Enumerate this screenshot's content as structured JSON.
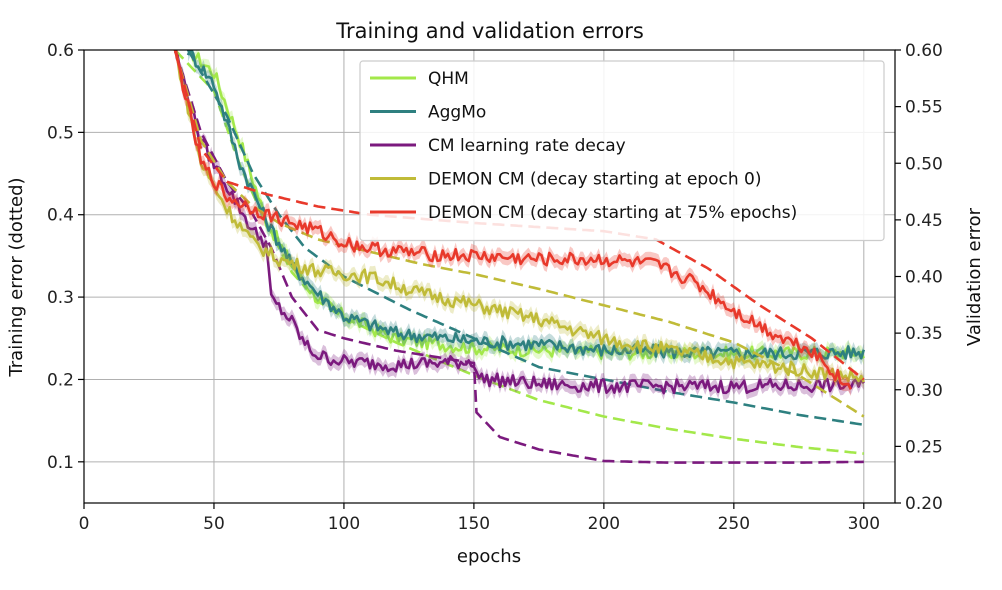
{
  "chart_data": {
    "type": "line",
    "title": "Training and validation errors",
    "xlabel": "epochs",
    "ylabel_left": "Training error (dotted)",
    "ylabel_right": "Validation error",
    "xlim": [
      0,
      312
    ],
    "ylim_left": [
      0.05,
      0.6
    ],
    "ylim_right": [
      0.2,
      0.6
    ],
    "xticks": [
      "0",
      "50",
      "100",
      "150",
      "200",
      "250",
      "300"
    ],
    "yticks_left": [
      "0.1",
      "0.2",
      "0.3",
      "0.4",
      "0.5",
      "0.6"
    ],
    "yticks_right": [
      "0.20",
      "0.25",
      "0.30",
      "0.35",
      "0.40",
      "0.45",
      "0.50",
      "0.55",
      "0.60"
    ],
    "grid": true,
    "legend_position": "top-right",
    "series": [
      {
        "name": "QHM",
        "color": "#a3e84a",
        "train_dotted": [
          [
            35,
            0.6
          ],
          [
            50,
            0.55
          ],
          [
            60,
            0.46
          ],
          [
            70,
            0.39
          ],
          [
            80,
            0.33
          ],
          [
            90,
            0.295
          ],
          [
            100,
            0.275
          ],
          [
            120,
            0.245
          ],
          [
            150,
            0.205
          ],
          [
            175,
            0.175
          ],
          [
            200,
            0.155
          ],
          [
            225,
            0.14
          ],
          [
            250,
            0.128
          ],
          [
            275,
            0.118
          ],
          [
            300,
            0.11
          ]
        ],
        "validation": [
          [
            40,
            0.6
          ],
          [
            50,
            0.58
          ],
          [
            60,
            0.52
          ],
          [
            70,
            0.45
          ],
          [
            80,
            0.41
          ],
          [
            90,
            0.38
          ],
          [
            100,
            0.365
          ],
          [
            120,
            0.345
          ],
          [
            150,
            0.337
          ],
          [
            175,
            0.335
          ],
          [
            200,
            0.333
          ],
          [
            250,
            0.332
          ],
          [
            300,
            0.333
          ]
        ]
      },
      {
        "name": "AggMo",
        "color": "#2e8080",
        "train_dotted": [
          [
            40,
            0.6
          ],
          [
            55,
            0.52
          ],
          [
            65,
            0.45
          ],
          [
            75,
            0.4
          ],
          [
            85,
            0.36
          ],
          [
            100,
            0.325
          ],
          [
            125,
            0.285
          ],
          [
            150,
            0.25
          ],
          [
            175,
            0.215
          ],
          [
            200,
            0.2
          ],
          [
            225,
            0.185
          ],
          [
            250,
            0.172
          ],
          [
            275,
            0.157
          ],
          [
            300,
            0.145
          ]
        ],
        "validation": [
          [
            40,
            0.6
          ],
          [
            50,
            0.57
          ],
          [
            60,
            0.5
          ],
          [
            70,
            0.45
          ],
          [
            80,
            0.41
          ],
          [
            90,
            0.385
          ],
          [
            100,
            0.365
          ],
          [
            120,
            0.35
          ],
          [
            150,
            0.343
          ],
          [
            175,
            0.34
          ],
          [
            200,
            0.335
          ],
          [
            250,
            0.332
          ],
          [
            300,
            0.333
          ]
        ]
      },
      {
        "name": "CM learning rate decay",
        "color": "#7b1a7e",
        "train_dotted": [
          [
            35,
            0.6
          ],
          [
            45,
            0.5
          ],
          [
            55,
            0.44
          ],
          [
            65,
            0.4
          ],
          [
            72,
            0.36
          ],
          [
            80,
            0.3
          ],
          [
            90,
            0.26
          ],
          [
            100,
            0.25
          ],
          [
            120,
            0.235
          ],
          [
            150,
            0.22
          ],
          [
            151,
            0.16
          ],
          [
            160,
            0.13
          ],
          [
            175,
            0.115
          ],
          [
            200,
            0.101
          ],
          [
            225,
            0.099
          ],
          [
            250,
            0.099
          ],
          [
            275,
            0.099
          ],
          [
            300,
            0.1
          ]
        ],
        "validation": [
          [
            35,
            0.6
          ],
          [
            45,
            0.52
          ],
          [
            55,
            0.48
          ],
          [
            65,
            0.44
          ],
          [
            70,
            0.43
          ],
          [
            72,
            0.38
          ],
          [
            80,
            0.36
          ],
          [
            85,
            0.34
          ],
          [
            90,
            0.33
          ],
          [
            100,
            0.325
          ],
          [
            120,
            0.322
          ],
          [
            150,
            0.325
          ],
          [
            152,
            0.31
          ],
          [
            175,
            0.305
          ],
          [
            200,
            0.303
          ],
          [
            250,
            0.303
          ],
          [
            300,
            0.304
          ]
        ]
      },
      {
        "name": "DEMON CM (decay starting at epoch 0)",
        "color": "#c0bb38",
        "train_dotted": [
          [
            35,
            0.6
          ],
          [
            45,
            0.49
          ],
          [
            55,
            0.44
          ],
          [
            65,
            0.41
          ],
          [
            75,
            0.39
          ],
          [
            90,
            0.37
          ],
          [
            110,
            0.355
          ],
          [
            130,
            0.34
          ],
          [
            150,
            0.328
          ],
          [
            175,
            0.31
          ],
          [
            200,
            0.29
          ],
          [
            225,
            0.27
          ],
          [
            250,
            0.245
          ],
          [
            275,
            0.205
          ],
          [
            300,
            0.155
          ]
        ],
        "validation": [
          [
            35,
            0.6
          ],
          [
            45,
            0.5
          ],
          [
            55,
            0.46
          ],
          [
            65,
            0.43
          ],
          [
            75,
            0.415
          ],
          [
            90,
            0.405
          ],
          [
            110,
            0.4
          ],
          [
            130,
            0.385
          ],
          [
            150,
            0.375
          ],
          [
            175,
            0.362
          ],
          [
            200,
            0.345
          ],
          [
            225,
            0.335
          ],
          [
            250,
            0.325
          ],
          [
            275,
            0.318
          ],
          [
            300,
            0.31
          ]
        ]
      },
      {
        "name": "DEMON CM (decay starting at 75% epochs)",
        "color": "#e8392b",
        "train_dotted": [
          [
            35,
            0.6
          ],
          [
            45,
            0.48
          ],
          [
            55,
            0.44
          ],
          [
            70,
            0.425
          ],
          [
            90,
            0.41
          ],
          [
            110,
            0.4
          ],
          [
            130,
            0.395
          ],
          [
            150,
            0.39
          ],
          [
            175,
            0.385
          ],
          [
            200,
            0.38
          ],
          [
            220,
            0.37
          ],
          [
            240,
            0.335
          ],
          [
            260,
            0.29
          ],
          [
            280,
            0.25
          ],
          [
            300,
            0.2
          ]
        ],
        "validation": [
          [
            35,
            0.6
          ],
          [
            45,
            0.5
          ],
          [
            55,
            0.47
          ],
          [
            70,
            0.455
          ],
          [
            90,
            0.44
          ],
          [
            100,
            0.43
          ],
          [
            110,
            0.425
          ],
          [
            130,
            0.42
          ],
          [
            150,
            0.418
          ],
          [
            175,
            0.415
          ],
          [
            200,
            0.415
          ],
          [
            220,
            0.41
          ],
          [
            235,
            0.395
          ],
          [
            250,
            0.37
          ],
          [
            265,
            0.35
          ],
          [
            280,
            0.335
          ],
          [
            295,
            0.3
          ]
        ]
      }
    ]
  }
}
